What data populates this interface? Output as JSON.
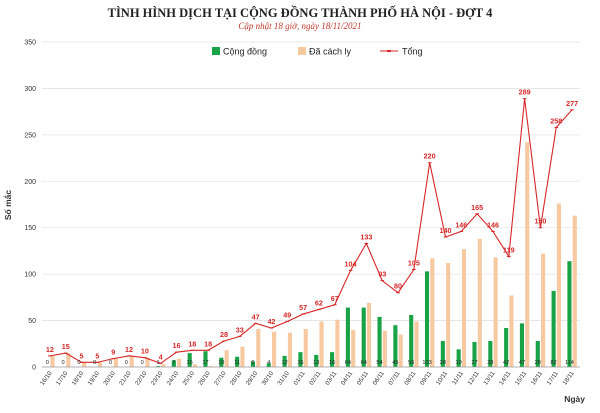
{
  "chart_data": {
    "type": "bar",
    "title": "TÌNH HÌNH DỊCH TẠI CỘNG ĐỒNG THÀNH PHỐ HÀ NỘI - ĐỢT 4",
    "subtitle": "Cập nhật 18 giờ, ngày 18/11/2021",
    "xlabel": "Ngày",
    "ylabel": "Số mắc",
    "ylim": [
      0,
      350
    ],
    "yticks": [
      0,
      50,
      100,
      150,
      200,
      250,
      300,
      350
    ],
    "grid": true,
    "legend_position": "top-center",
    "categories": [
      "16/10",
      "17/10",
      "18/10",
      "19/10",
      "20/10",
      "21/10",
      "22/10",
      "23/10",
      "24/10",
      "25/10",
      "26/10",
      "27/10",
      "28/10",
      "29/10",
      "30/10",
      "31/10",
      "01/11",
      "02/11",
      "03/11",
      "04/11",
      "05/11",
      "06/11",
      "07/11",
      "08/11",
      "09/11",
      "10/11",
      "11/11",
      "12/11",
      "13/11",
      "14/11",
      "15/11",
      "16/11",
      "17/11",
      "18/11"
    ],
    "series": [
      {
        "name": "Cộng đồng",
        "kind": "bar",
        "color": "#1aa346",
        "values": [
          0,
          0,
          0,
          0,
          0,
          0,
          0,
          1,
          7,
          15,
          17,
          10,
          11,
          6,
          4,
          12,
          16,
          13,
          16,
          64,
          64,
          54,
          45,
          56,
          103,
          28,
          19,
          27,
          28,
          42,
          47,
          28,
          82,
          114
        ]
      },
      {
        "name": "Đã cách ly",
        "kind": "bar",
        "color": "#f6c9a1",
        "values": [
          12,
          15,
          5,
          5,
          9,
          12,
          10,
          3,
          9,
          3,
          1,
          18,
          22,
          41,
          38,
          37,
          41,
          49,
          51,
          40,
          69,
          39,
          35,
          49,
          117,
          112,
          127,
          138,
          118,
          77,
          242,
          122,
          176,
          163
        ]
      },
      {
        "name": "Tổng",
        "kind": "line",
        "color": "#d62728",
        "values": [
          12,
          15,
          5,
          5,
          9,
          12,
          10,
          4,
          16,
          18,
          18,
          28,
          33,
          47,
          42,
          49,
          57,
          62,
          67,
          104,
          133,
          93,
          80,
          105,
          220,
          140,
          146,
          165,
          146,
          119,
          289,
          150,
          258,
          277
        ]
      }
    ]
  }
}
